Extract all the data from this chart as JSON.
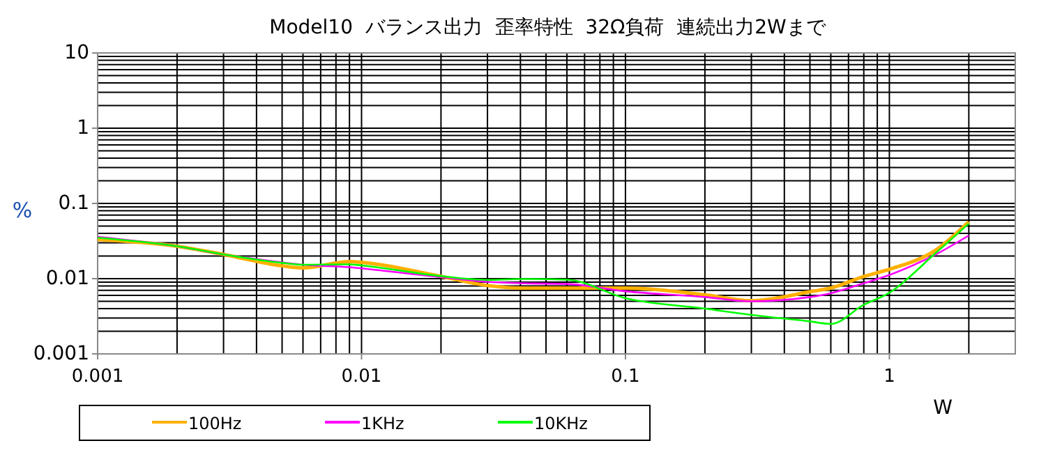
{
  "chart_data": {
    "type": "line",
    "title": "Model10  バランス出力  歪率特性  32Ω負荷  連続出力2Wまで",
    "xlabel": "W",
    "ylabel": "%",
    "log": "xy",
    "grid": true,
    "legend": "bottom",
    "xlim": [
      0.001,
      3
    ],
    "ylim": [
      0.001,
      10
    ],
    "xticks": [
      0.001,
      0.01,
      0.1,
      1
    ],
    "yticks": [
      0.001,
      0.01,
      0.1,
      1,
      10
    ],
    "x": [
      0.001,
      0.002,
      0.003,
      0.005,
      0.006,
      0.009,
      0.01,
      0.02,
      0.03,
      0.04,
      0.06,
      0.1,
      0.2,
      0.3,
      0.5,
      0.6,
      0.8,
      1,
      1.5,
      2
    ],
    "series": [
      {
        "name": "100Hz",
        "color": "#ffb000",
        "values": [
          0.033,
          0.027,
          0.021,
          0.0148,
          0.0139,
          0.0169,
          0.0165,
          0.0107,
          0.0081,
          0.0075,
          0.0075,
          0.0075,
          0.0061,
          0.0051,
          0.0067,
          0.0075,
          0.0107,
          0.0133,
          0.024,
          0.057
        ]
      },
      {
        "name": "1KHz",
        "color": "#ff00ff",
        "values": [
          0.036,
          0.027,
          0.021,
          0.0165,
          0.0153,
          0.0142,
          0.0137,
          0.0105,
          0.0091,
          0.0087,
          0.0085,
          0.0068,
          0.0057,
          0.005,
          0.0057,
          0.0064,
          0.0087,
          0.0112,
          0.021,
          0.0375
        ]
      },
      {
        "name": "10KHz",
        "color": "#00ff00",
        "values": [
          0.035,
          0.027,
          0.021,
          0.0162,
          0.0153,
          0.0155,
          0.015,
          0.0108,
          0.0096,
          0.0099,
          0.0097,
          0.0055,
          0.004,
          0.0033,
          0.0027,
          0.0025,
          0.0045,
          0.0065,
          0.022,
          0.054
        ]
      }
    ]
  }
}
